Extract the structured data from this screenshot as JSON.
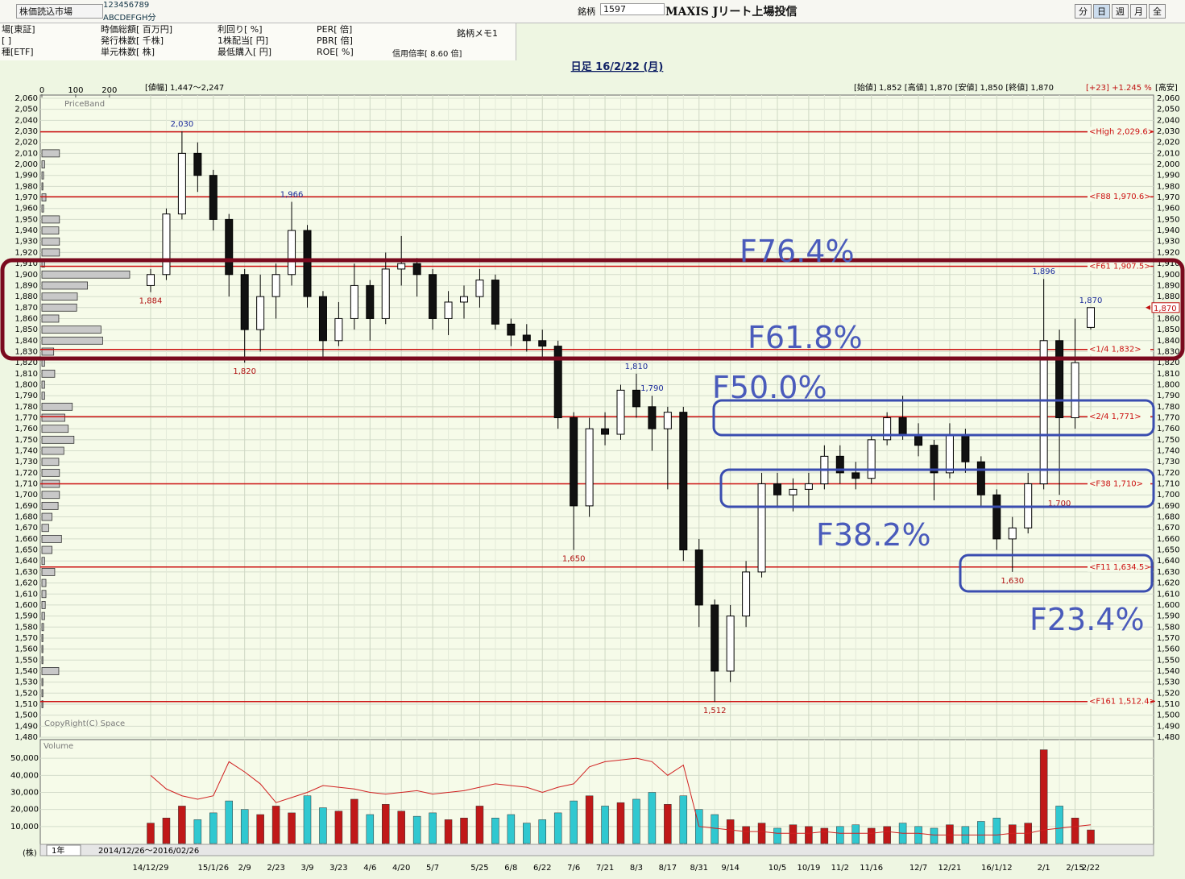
{
  "toolbar": {
    "market": "株価読込市場",
    "digits": "123456789",
    "letters": "ABCDEFGH分",
    "code_label": "銘柄",
    "code": "1597",
    "name": "MAXIS Jリート上場投信",
    "periods": [
      "分",
      "日",
      "週",
      "月",
      "全"
    ]
  },
  "info": {
    "col1": [
      "場[東証]",
      "[ ]",
      "種[ETF]"
    ],
    "col2": [
      "時価総額[ 百万円]",
      "発行株数[ 千株]",
      "単元株数[ 株]"
    ],
    "col3": [
      "利回り[ %]",
      "1株配当[ 円]",
      "最低購入[ 円]"
    ],
    "col4": [
      "PER[ 倍]",
      "PBR[ 倍]",
      "ROE[ %]"
    ],
    "memo": "銘柄メモ1",
    "margin": "信用倍率[ 8.60 倍]"
  },
  "chart_data": {
    "type": "candlestick",
    "title": "日足 16/2/22 (月)",
    "range_text": "[値幅] 1,447～2,247",
    "summary": "[始値] 1,852 [高値] 1,870 [安値] 1,850 [終値] 1,870",
    "change": "[+23] +1.245 %",
    "right_title": "[高安]",
    "band_title": "PriceBand",
    "copyright": "CopyRight(C) Space",
    "up_color": "#ffffff",
    "down_color": "#111111",
    "grid": true,
    "categories": [
      "14/12/29",
      null,
      null,
      null,
      "15/1/26",
      null,
      "2/9",
      null,
      "2/23",
      null,
      "3/9",
      null,
      "3/23",
      null,
      "4/6",
      null,
      "4/20",
      null,
      "5/7",
      null,
      null,
      "5/25",
      null,
      "6/8",
      null,
      "6/22",
      null,
      "7/6",
      null,
      "7/21",
      null,
      "8/3",
      null,
      "8/17",
      null,
      "8/31",
      null,
      "9/14",
      null,
      null,
      "10/5",
      null,
      "10/19",
      null,
      "11/2",
      null,
      "11/16",
      null,
      null,
      "12/7",
      null,
      "12/21",
      null,
      null,
      "16/1/12",
      null,
      null,
      "2/1",
      null,
      "2/15",
      "2/22"
    ],
    "open": [
      1890,
      1900,
      1955,
      2010,
      1990,
      1950,
      1900,
      1850,
      1880,
      1900,
      1940,
      1880,
      1840,
      1860,
      1890,
      1860,
      1905,
      1910,
      1900,
      1860,
      1875,
      1880,
      1895,
      1855,
      1845,
      1840,
      1835,
      1770,
      1690,
      1760,
      1755,
      1795,
      1780,
      1760,
      1775,
      1650,
      1600,
      1540,
      1590,
      1630,
      1710,
      1700,
      1705,
      1710,
      1735,
      1720,
      1715,
      1750,
      1770,
      1755,
      1745,
      1720,
      1755,
      1730,
      1700,
      1660,
      1670,
      1710,
      1840,
      1770,
      1852
    ],
    "high": [
      1905,
      1960,
      2030,
      2020,
      1995,
      1955,
      1905,
      1900,
      1910,
      1966,
      1945,
      1885,
      1875,
      1910,
      1895,
      1920,
      1935,
      1915,
      1905,
      1885,
      1890,
      1905,
      1900,
      1860,
      1855,
      1850,
      1840,
      1775,
      1770,
      1775,
      1800,
      1810,
      1790,
      1780,
      1780,
      1660,
      1605,
      1600,
      1640,
      1720,
      1720,
      1715,
      1720,
      1745,
      1745,
      1730,
      1755,
      1775,
      1790,
      1765,
      1750,
      1765,
      1760,
      1735,
      1705,
      1680,
      1720,
      1896,
      1850,
      1860,
      1870
    ],
    "low": [
      1884,
      1895,
      1950,
      1975,
      1940,
      1880,
      1820,
      1830,
      1860,
      1890,
      1870,
      1825,
      1835,
      1850,
      1840,
      1855,
      1890,
      1880,
      1850,
      1845,
      1860,
      1870,
      1850,
      1835,
      1830,
      1825,
      1760,
      1650,
      1680,
      1745,
      1750,
      1770,
      1740,
      1705,
      1640,
      1580,
      1512,
      1530,
      1580,
      1625,
      1690,
      1685,
      1690,
      1705,
      1710,
      1705,
      1710,
      1745,
      1750,
      1735,
      1695,
      1715,
      1720,
      1690,
      1650,
      1630,
      1665,
      1705,
      1700,
      1760,
      1850
    ],
    "close": [
      1900,
      1955,
      2010,
      1990,
      1950,
      1900,
      1850,
      1880,
      1900,
      1940,
      1880,
      1840,
      1860,
      1890,
      1860,
      1905,
      1910,
      1900,
      1860,
      1875,
      1880,
      1895,
      1855,
      1845,
      1840,
      1835,
      1770,
      1690,
      1760,
      1755,
      1795,
      1780,
      1760,
      1775,
      1650,
      1600,
      1540,
      1590,
      1630,
      1710,
      1700,
      1705,
      1710,
      1735,
      1720,
      1715,
      1750,
      1770,
      1755,
      1745,
      1720,
      1755,
      1730,
      1700,
      1660,
      1670,
      1710,
      1840,
      1770,
      1820,
      1870
    ],
    "ylim": [
      1480,
      2060
    ],
    "yticks": [
      {
        "value": 2060,
        "label": "2,060"
      },
      {
        "value": 2050,
        "label": "2,050"
      },
      {
        "value": 2040,
        "label": "2,040"
      },
      {
        "value": 2030,
        "label": "2,030"
      },
      {
        "value": 2020,
        "label": "2,020"
      },
      {
        "value": 2010,
        "label": "2,010"
      },
      {
        "value": 2000,
        "label": "2,000"
      },
      {
        "value": 1990,
        "label": "1,990"
      },
      {
        "value": 1980,
        "label": "1,980"
      },
      {
        "value": 1970,
        "label": "1,970"
      },
      {
        "value": 1960,
        "label": "1,960"
      },
      {
        "value": 1950,
        "label": "1,950"
      },
      {
        "value": 1940,
        "label": "1,940"
      },
      {
        "value": 1930,
        "label": "1,930"
      },
      {
        "value": 1920,
        "label": "1,920"
      },
      {
        "value": 1910,
        "label": "1,910"
      },
      {
        "value": 1900,
        "label": "1,900"
      },
      {
        "value": 1890,
        "label": "1,890"
      },
      {
        "value": 1880,
        "label": "1,880"
      },
      {
        "value": 1870,
        "label": "1,870"
      },
      {
        "value": 1860,
        "label": "1,860"
      },
      {
        "value": 1850,
        "label": "1,850"
      },
      {
        "value": 1840,
        "label": "1,840"
      },
      {
        "value": 1830,
        "label": "1,830"
      },
      {
        "value": 1820,
        "label": "1,820"
      },
      {
        "value": 1810,
        "label": "1,810"
      },
      {
        "value": 1800,
        "label": "1,800"
      },
      {
        "value": 1790,
        "label": "1,790"
      },
      {
        "value": 1780,
        "label": "1,780"
      },
      {
        "value": 1770,
        "label": "1,770"
      },
      {
        "value": 1760,
        "label": "1,760"
      },
      {
        "value": 1750,
        "label": "1,750"
      },
      {
        "value": 1740,
        "label": "1,740"
      },
      {
        "value": 1730,
        "label": "1,730"
      },
      {
        "value": 1720,
        "label": "1,720"
      },
      {
        "value": 1710,
        "label": "1,710"
      },
      {
        "value": 1700,
        "label": "1,700"
      },
      {
        "value": 1690,
        "label": "1,690"
      },
      {
        "value": 1680,
        "label": "1,680"
      },
      {
        "value": 1670,
        "label": "1,670"
      },
      {
        "value": 1660,
        "label": "1,660"
      },
      {
        "value": 1650,
        "label": "1,650"
      },
      {
        "value": 1640,
        "label": "1,640"
      },
      {
        "value": 1630,
        "label": "1,630"
      },
      {
        "value": 1620,
        "label": "1,620"
      },
      {
        "value": 1610,
        "label": "1,610"
      },
      {
        "value": 1600,
        "label": "1,600"
      },
      {
        "value": 1590,
        "label": "1,590"
      },
      {
        "value": 1580,
        "label": "1,580"
      },
      {
        "value": 1570,
        "label": "1,570"
      },
      {
        "value": 1560,
        "label": "1,560"
      },
      {
        "value": 1550,
        "label": "1,550"
      },
      {
        "value": 1540,
        "label": "1,540"
      },
      {
        "value": 1530,
        "label": "1,530"
      },
      {
        "value": 1520,
        "label": "1,520"
      },
      {
        "value": 1510,
        "label": "1,510"
      },
      {
        "value": 1500,
        "label": "1,500"
      },
      {
        "value": 1490,
        "label": "1,490"
      },
      {
        "value": 1480,
        "label": "1,480"
      }
    ],
    "levels": [
      {
        "value": 2029.6,
        "label": "<High 2,029.6>"
      },
      {
        "value": 1970.6,
        "label": "<F88 1,970.6>"
      },
      {
        "value": 1907.5,
        "label": "<F61 1,907.5>"
      },
      {
        "value": 1832,
        "label": "<1/4 1,832>"
      },
      {
        "value": 1771,
        "label": "<2/4 1,771>"
      },
      {
        "value": 1710,
        "label": "<F38 1,710>"
      },
      {
        "value": 1634.5,
        "label": "<F11 1,634.5>"
      },
      {
        "value": 1512.4,
        "label": "<F161 1,512.4>"
      }
    ],
    "level_color": "#cc1010",
    "annotations": {
      "high_color": "#1a2a9a",
      "low_color": "#b01010",
      "items": [
        {
          "value": 2030,
          "label": "2,030",
          "at": "high"
        },
        {
          "value": 1966,
          "label": "1,966",
          "at": "high"
        },
        {
          "value": 1884,
          "label": "1,884",
          "at": "low"
        },
        {
          "value": 1820,
          "label": "1,820",
          "at": "low"
        },
        {
          "value": 1810,
          "label": "1,810",
          "at": "high"
        },
        {
          "value": 1650,
          "label": "1,650",
          "at": "low"
        },
        {
          "value": 1512,
          "label": "1,512",
          "at": "low"
        },
        {
          "value": 1790,
          "label": "1,790",
          "at": "high"
        },
        {
          "value": 1896,
          "label": "1,896",
          "at": "high"
        },
        {
          "value": 1700,
          "label": "1,700",
          "at": "low"
        },
        {
          "value": 1630,
          "label": "1,630",
          "at": "low"
        },
        {
          "value": 1870,
          "label": "1,870",
          "at": "high"
        }
      ]
    },
    "last_price": {
      "value": 1870,
      "label": "1,870"
    },
    "fib_labels": [
      "F76.4%",
      "F61.8%",
      "F50.0%",
      "F38.2%",
      "F23.4%"
    ],
    "price_band": {
      "levels": [
        2010,
        2000,
        1990,
        1980,
        1970,
        1960,
        1950,
        1940,
        1930,
        1920,
        1910,
        1900,
        1890,
        1880,
        1870,
        1860,
        1850,
        1840,
        1830,
        1820,
        1810,
        1800,
        1790,
        1780,
        1770,
        1760,
        1750,
        1740,
        1730,
        1720,
        1710,
        1700,
        1690,
        1680,
        1670,
        1660,
        1650,
        1640,
        1630,
        1620,
        1610,
        1600,
        1590,
        1580,
        1570,
        1560,
        1550,
        1540,
        1530,
        1520,
        1510
      ],
      "values": [
        52,
        8,
        5,
        3,
        12,
        5,
        52,
        50,
        52,
        52,
        8,
        260,
        135,
        105,
        103,
        50,
        175,
        180,
        35,
        8,
        38,
        8,
        8,
        90,
        68,
        78,
        95,
        65,
        50,
        52,
        52,
        52,
        48,
        30,
        20,
        58,
        30,
        8,
        38,
        12,
        12,
        10,
        8,
        5,
        3,
        3,
        3,
        50,
        3,
        3,
        3
      ],
      "xlim": [
        0,
        260
      ],
      "xticks": [
        0,
        100,
        200
      ],
      "color": "#c8c8c8"
    },
    "volume": {
      "title": "Volume",
      "unit": "(株)",
      "up_color": "#c01818",
      "down_color": "#30c8d0",
      "ma_color": "#d02020",
      "values": [
        12000,
        15000,
        22000,
        14000,
        18000,
        25000,
        20000,
        17000,
        22000,
        18000,
        28000,
        21000,
        19000,
        26000,
        17000,
        23000,
        19000,
        16000,
        18000,
        14000,
        15000,
        22000,
        15000,
        17000,
        12000,
        14000,
        18000,
        25000,
        28000,
        22000,
        24000,
        26000,
        30000,
        23000,
        28000,
        20000,
        17000,
        14000,
        10000,
        12000,
        9000,
        11000,
        10000,
        9000,
        10000,
        11000,
        9000,
        10000,
        12000,
        10000,
        9000,
        11000,
        10000,
        13000,
        15000,
        11000,
        12000,
        55000,
        22000,
        15000,
        8000
      ],
      "ma": [
        40000,
        32000,
        28000,
        26000,
        28000,
        48000,
        42000,
        35000,
        24000,
        27000,
        30000,
        34000,
        33000,
        32000,
        30000,
        29000,
        30000,
        31000,
        29000,
        30000,
        31000,
        33000,
        35000,
        34000,
        33000,
        30000,
        33000,
        35000,
        45000,
        48000,
        49000,
        50000,
        48000,
        40000,
        46000,
        10000,
        9000,
        8000,
        7000,
        7000,
        6000,
        6000,
        6000,
        7000,
        6000,
        6000,
        6000,
        7000,
        6000,
        6000,
        5000,
        5000,
        5000,
        5000,
        5000,
        6000,
        6000,
        8000,
        9000,
        10000,
        11000
      ],
      "ylim": [
        0,
        60000
      ],
      "yticks": [
        {
          "value": 10000,
          "label": "10,000"
        },
        {
          "value": 20000,
          "label": "20,000"
        },
        {
          "value": 30000,
          "label": "30,000"
        },
        {
          "value": 40000,
          "label": "40,000"
        },
        {
          "value": 50000,
          "label": "50,000"
        }
      ]
    },
    "period": "1年",
    "span": "2014/12/26～2016/02/26"
  }
}
